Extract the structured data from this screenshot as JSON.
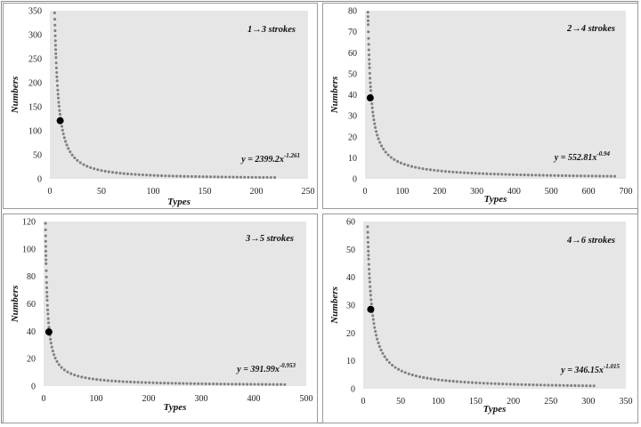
{
  "chart_data": [
    {
      "type": "scatter",
      "title": "1→3 strokes",
      "xlabel": "Types",
      "ylabel": "Numbers",
      "xlim": [
        0,
        250
      ],
      "ylim": [
        0,
        350
      ],
      "xticks": [
        0,
        50,
        100,
        150,
        200,
        250
      ],
      "yticks": [
        0,
        50,
        100,
        150,
        200,
        250,
        300,
        350
      ],
      "x_range": [
        1,
        220
      ],
      "equation": {
        "base": "y = 2399.2x",
        "exponent": "-1.261"
      },
      "fit": {
        "a": 2399.2,
        "b": -1.261
      },
      "highlight": {
        "x": 10,
        "y": 121
      },
      "grid": false,
      "background": "#e6e6e6",
      "dot_color": "#808080"
    },
    {
      "type": "scatter",
      "title": "2→4 strokes",
      "xlabel": "Types",
      "ylabel": "Numbers",
      "xlim": [
        0,
        700
      ],
      "ylim": [
        0,
        80
      ],
      "xticks": [
        0,
        100,
        200,
        300,
        400,
        500,
        600,
        700
      ],
      "yticks": [
        0,
        10,
        20,
        30,
        40,
        50,
        60,
        70,
        80
      ],
      "x_range": [
        7,
        680
      ],
      "equation": {
        "base": "y = 552.81x",
        "exponent": "-0.94"
      },
      "fit": {
        "a": 552.81,
        "b": -0.94
      },
      "highlight": {
        "x": 14,
        "y": 38.5
      },
      "grid": false,
      "background": "#e6e6e6",
      "dot_color": "#808080"
    },
    {
      "type": "scatter",
      "title": "3→5 strokes",
      "xlabel": "Types",
      "ylabel": "Numbers",
      "xlim": [
        0,
        500
      ],
      "ylim": [
        0,
        120
      ],
      "xticks": [
        0,
        100,
        200,
        300,
        400,
        500
      ],
      "yticks": [
        0,
        20,
        40,
        60,
        80,
        100,
        120
      ],
      "x_range": [
        3.2,
        460
      ],
      "equation": {
        "base": "y = 391.99x",
        "exponent": "-0.953"
      },
      "fit": {
        "a": 391.99,
        "b": -0.953
      },
      "highlight": {
        "x": 10,
        "y": 39.5
      },
      "grid": false,
      "background": "#e6e6e6",
      "dot_color": "#808080"
    },
    {
      "type": "scatter",
      "title": "4→6 strokes",
      "xlabel": "Types",
      "ylabel": "Numbers",
      "xlim": [
        0,
        350
      ],
      "ylim": [
        0,
        60
      ],
      "xticks": [
        0,
        50,
        100,
        150,
        200,
        250,
        300,
        350
      ],
      "yticks": [
        0,
        10,
        20,
        30,
        40,
        50,
        60
      ],
      "x_range": [
        5.8,
        310
      ],
      "equation": {
        "base": "y = 346.15x",
        "exponent": "-1.015"
      },
      "fit": {
        "a": 346.15,
        "b": -1.015
      },
      "highlight": {
        "x": 10,
        "y": 28.5
      },
      "grid": false,
      "background": "#e6e6e6",
      "dot_color": "#808080"
    }
  ]
}
